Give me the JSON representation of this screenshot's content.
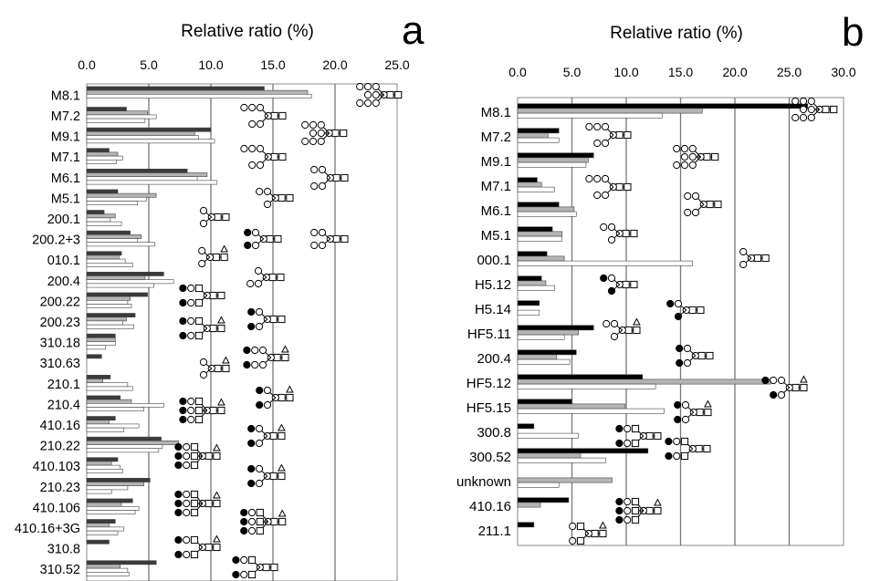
{
  "chart_data": [
    {
      "type": "bar",
      "panel_letter": "a",
      "title": "Relative ratio (%)",
      "xlim": [
        0,
        25
      ],
      "xticks": [
        "0.0",
        "5.0",
        "10.0",
        "15.0",
        "20.0",
        "25.0"
      ],
      "grid": true,
      "categories": [
        "M8.1",
        "M7.2",
        "M9.1",
        "M7.1",
        "M6.1",
        "M5.1",
        "200.1",
        "200.2+3",
        "010.1",
        "200.4",
        "200.22",
        "200.23",
        "310.18",
        "310.63",
        "210.1",
        "210.4",
        "410.16",
        "210.22",
        "410.103",
        "210.23",
        "410.106",
        "410.16+3G",
        "310.8",
        "310.52"
      ],
      "series": [
        {
          "color": "#3a3a3a",
          "values": [
            14.3,
            3.2,
            10.0,
            1.8,
            8.1,
            2.5,
            1.4,
            3.5,
            2.8,
            6.2,
            4.9,
            3.9,
            2.3,
            1.2,
            1.9,
            2.7,
            2.3,
            6.0,
            2.5,
            5.1,
            3.7,
            2.3,
            1.8,
            5.6
          ]
        },
        {
          "color": "#b4b4b4",
          "values": [
            17.8,
            4.9,
            8.7,
            2.5,
            9.7,
            5.6,
            2.3,
            4.4,
            2.6,
            4.7,
            3.5,
            3.2,
            2.3,
            0,
            1.3,
            3.6,
            1.8,
            7.4,
            2.0,
            4.6,
            2.8,
            1.8,
            0,
            2.7
          ]
        },
        {
          "color": "#ffffff",
          "values": [
            18.1,
            5.6,
            9.0,
            2.9,
            8.9,
            4.8,
            1.9,
            4.1,
            3.1,
            7.0,
            3.3,
            2.9,
            2.3,
            0,
            3.3,
            6.2,
            4.2,
            6.1,
            2.7,
            3.3,
            4.2,
            3.0,
            0,
            3.3
          ]
        },
        {
          "color": "#ffffff",
          "values": [
            0,
            4.7,
            10.3,
            2.4,
            10.5,
            4.1,
            2.8,
            5.5,
            3.7,
            5.4,
            3.6,
            3.8,
            1.5,
            0,
            3.7,
            4.6,
            3.0,
            5.8,
            2.9,
            2.0,
            3.9,
            2.5,
            0,
            3.4
          ]
        }
      ]
    },
    {
      "type": "bar",
      "panel_letter": "b",
      "title": "Relative ratio (%)",
      "xlim": [
        0,
        30
      ],
      "xticks": [
        "0.0",
        "5.0",
        "10.0",
        "15.0",
        "20.0",
        "25.0",
        "30.0"
      ],
      "grid": true,
      "categories": [
        "M8.1",
        "M7.2",
        "M9.1",
        "M7.1",
        "M6.1",
        "M5.1",
        "000.1",
        "H5.12",
        "H5.14",
        "HF5.11",
        "200.4",
        "HF5.12",
        "HF5.15",
        "300.8",
        "300.52",
        "unknown",
        "410.16",
        "211.1"
      ],
      "series": [
        {
          "color": "#000000",
          "values": [
            26.7,
            3.8,
            7.0,
            1.8,
            3.8,
            3.2,
            2.7,
            2.2,
            2.0,
            7.0,
            5.4,
            11.5,
            5.0,
            1.5,
            12.0,
            0,
            4.7,
            1.5
          ]
        },
        {
          "color": "#b4b4b4",
          "values": [
            17.0,
            2.8,
            6.5,
            2.2,
            5.2,
            4.1,
            4.3,
            2.6,
            0,
            5.6,
            3.6,
            23.3,
            9.9,
            0,
            5.8,
            8.7,
            2.1,
            0
          ]
        },
        {
          "color": "#ffffff",
          "values": [
            13.3,
            3.8,
            6.3,
            3.4,
            5.4,
            4.1,
            16.1,
            3.4,
            2.0,
            4.3,
            4.8,
            12.7,
            13.5,
            5.6,
            8.1,
            3.8,
            0,
            0
          ]
        }
      ]
    }
  ]
}
